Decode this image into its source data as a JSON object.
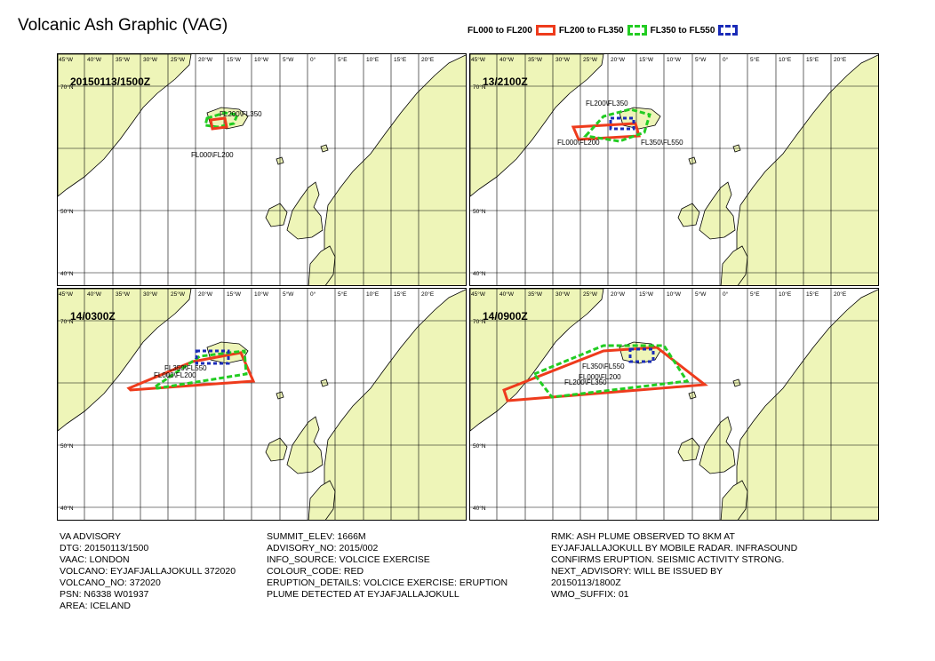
{
  "title": "Volcanic Ash Graphic (VAG)",
  "legend": [
    {
      "label": "FL000 to FL200",
      "color": "#ee3b1c",
      "style": "solid"
    },
    {
      "label": "FL200 to FL350",
      "color": "#22cc22",
      "style": "dashed"
    },
    {
      "label": "FL350 to FL550",
      "color": "#1a2bb8",
      "style": "dotted"
    }
  ],
  "map": {
    "lon_ticks": [
      "45°W",
      "40°W",
      "35°W",
      "30°W",
      "25°W",
      "20°W",
      "15°W",
      "10°W",
      "5°W",
      "0°",
      "5°E",
      "10°E",
      "15°E",
      "20°E"
    ],
    "lat_ticks": [
      "70°N",
      "50°N",
      "40°N"
    ],
    "land_color": "#eef5b8",
    "sea_color": "#ffffff"
  },
  "panels": [
    {
      "time": "20150113/1500Z",
      "labels": [
        "FL200\\FL350",
        "FL000\\FL200"
      ]
    },
    {
      "time": "13/2100Z",
      "labels": [
        "FL200\\FL350",
        "FL000\\FL200",
        "FL350\\FL550"
      ]
    },
    {
      "time": "14/0300Z",
      "labels": [
        "FL350\\FL550",
        "FL000\\FL200"
      ]
    },
    {
      "time": "14/0900Z",
      "labels": [
        "FL350\\FL550",
        "FL000\\FL200",
        "FL200\\FL350"
      ]
    }
  ],
  "advisory": {
    "col1": [
      "VA ADVISORY",
      "DTG: 20150113/1500",
      "VAAC: LONDON",
      "VOLCANO: EYJAFJALLAJOKULL 372020",
      "VOLCANO_NO: 372020",
      "PSN: N6338 W01937",
      "AREA: ICELAND"
    ],
    "col2": [
      "SUMMIT_ELEV: 1666M",
      "ADVISORY_NO: 2015/002",
      "INFO_SOURCE: VOLCICE EXERCISE",
      "COLOUR_CODE: RED",
      "ERUPTION_DETAILS: VOLCICE EXERCISE: ERUPTION",
      "PLUME DETECTED AT EYJAFJALLAJOKULL"
    ],
    "col3": [
      "RMK: ASH PLUME OBSERVED TO 8KM AT",
      "EYJAFJALLAJOKULL BY MOBILE RADAR. INFRASOUND",
      "CONFIRMS ERUPTION. SEISMIC ACTIVITY STRONG.",
      "NEXT_ADVISORY: WILL BE ISSUED BY",
      "20150113/1800Z",
      "WMO_SUFFIX: 01"
    ]
  }
}
